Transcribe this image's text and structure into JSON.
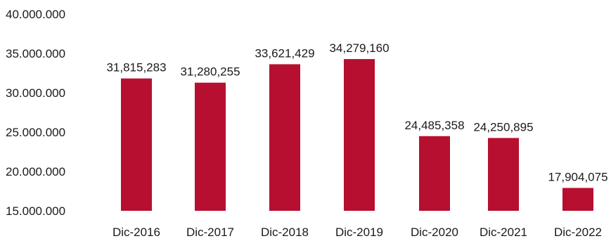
{
  "chart_data": {
    "type": "bar",
    "categories": [
      "Dic-2016",
      "Dic-2017",
      "Dic-2018",
      "Dic-2019",
      "Dic-2020",
      "Dic-2021",
      "Dic-2022"
    ],
    "values": [
      31815283,
      31280255,
      33621429,
      34279160,
      24485358,
      24250895,
      17904075
    ],
    "data_labels": [
      "31,815,283",
      "31,280,255",
      "33,621,429",
      "34,279,160",
      "24,485,358",
      "24,250,895",
      "17,904,075"
    ],
    "y_ticks": [
      15000000,
      20000000,
      25000000,
      30000000,
      35000000,
      40000000
    ],
    "y_tick_labels": [
      "15.000.000",
      "20.000.000",
      "25.000.000",
      "30.000.000",
      "35.000.000",
      "40.000.000"
    ],
    "ylim": [
      15000000,
      40000000
    ],
    "grid": false,
    "legend": "none",
    "bar_color": "#b70f2f"
  }
}
